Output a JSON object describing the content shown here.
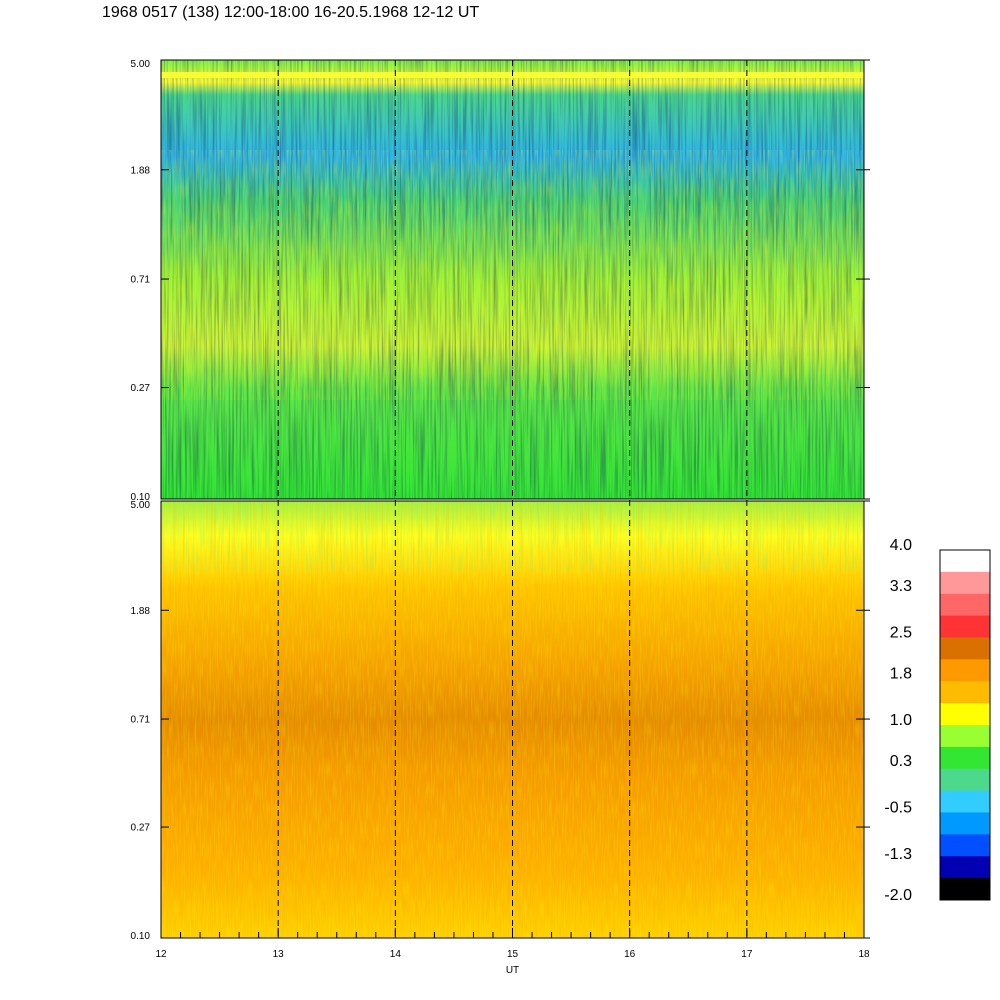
{
  "title": "1968 0517 (138) 12:00-18:00 16-20.5.1968  12-12 UT",
  "chart_data": {
    "type": "heatmap",
    "xlabel": "UT",
    "x_ticks": [
      "12",
      "13",
      "14",
      "15",
      "16",
      "17",
      "18"
    ],
    "x_range": [
      12,
      18
    ],
    "dashed_vertical_lines_at": [
      13,
      14,
      15,
      16,
      17
    ],
    "panels": [
      {
        "name": "upper",
        "y_ticks": [
          "5.00",
          "1.88",
          "0.71",
          "0.27",
          "0.10"
        ],
        "y_range": [
          0.1,
          5.0
        ],
        "y_scale": "log",
        "dominant_colors": [
          "green",
          "cyan",
          "blue",
          "yellow"
        ]
      },
      {
        "name": "lower",
        "y_ticks": [
          "5.00",
          "1.88",
          "0.71",
          "0.27",
          "0.10"
        ],
        "y_range": [
          0.1,
          5.0
        ],
        "y_scale": "log",
        "dominant_colors": [
          "orange",
          "yellow",
          "dark-orange",
          "green"
        ]
      }
    ],
    "colorbar": {
      "labels": [
        "4.0",
        "3.3",
        "2.5",
        "1.8",
        "1.0",
        "0.3",
        "-0.5",
        "-1.3",
        "-2.0"
      ],
      "range": [
        -2.0,
        4.0
      ],
      "colors": [
        "#ffffff",
        "#ff9999",
        "#ff6666",
        "#ff3333",
        "#d97000",
        "#ff9900",
        "#ffbb00",
        "#ffff00",
        "#99ff33",
        "#33e633",
        "#4cd98c",
        "#33ccff",
        "#0099ff",
        "#0050ff",
        "#0000b3",
        "#000000"
      ]
    }
  }
}
